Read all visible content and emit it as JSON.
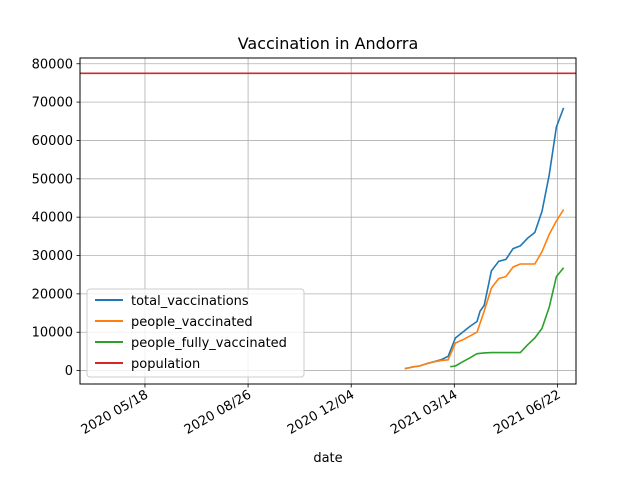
{
  "chart_data": {
    "type": "line",
    "title": "Vaccination in Andorra",
    "xlabel": "date",
    "ylabel": "",
    "grid": true,
    "legend_position": "lower-left",
    "xlim": [
      "2020-03-16",
      "2021-07-10"
    ],
    "ylim": [
      -3500,
      81500
    ],
    "x_ticks": [
      {
        "date": "2020-05-18",
        "label": "2020 05/18"
      },
      {
        "date": "2020-08-26",
        "label": "2020 08/26"
      },
      {
        "date": "2020-12-04",
        "label": "2020 12/04"
      },
      {
        "date": "2021-03-14",
        "label": "2021 03/14"
      },
      {
        "date": "2021-06-22",
        "label": "2021 06/22"
      }
    ],
    "y_ticks": [
      0,
      10000,
      20000,
      30000,
      40000,
      50000,
      60000,
      70000,
      80000
    ],
    "series": [
      {
        "name": "total_vaccinations",
        "color": "#1f77b4",
        "x": [
          "2021-01-25",
          "2021-02-01",
          "2021-02-08",
          "2021-02-15",
          "2021-02-22",
          "2021-03-01",
          "2021-03-08",
          "2021-03-15",
          "2021-03-22",
          "2021-03-29",
          "2021-04-05",
          "2021-04-08",
          "2021-04-12",
          "2021-04-19",
          "2021-04-26",
          "2021-05-03",
          "2021-05-10",
          "2021-05-17",
          "2021-05-24",
          "2021-05-31",
          "2021-06-07",
          "2021-06-14",
          "2021-06-21",
          "2021-06-28"
        ],
        "y": [
          500,
          900,
          1200,
          1800,
          2300,
          2800,
          3700,
          8500,
          10000,
          11500,
          12800,
          15500,
          17000,
          26000,
          28500,
          29000,
          31800,
          32500,
          34500,
          36000,
          41500,
          51000,
          63500,
          68500
        ]
      },
      {
        "name": "people_vaccinated",
        "color": "#ff7f0e",
        "x": [
          "2021-01-25",
          "2021-02-01",
          "2021-02-08",
          "2021-02-15",
          "2021-02-22",
          "2021-03-01",
          "2021-03-08",
          "2021-03-15",
          "2021-03-22",
          "2021-03-29",
          "2021-04-05",
          "2021-04-12",
          "2021-04-19",
          "2021-04-26",
          "2021-05-03",
          "2021-05-10",
          "2021-05-17",
          "2021-05-24",
          "2021-05-31",
          "2021-06-07",
          "2021-06-14",
          "2021-06-21",
          "2021-06-28"
        ],
        "y": [
          500,
          900,
          1200,
          1800,
          2300,
          2600,
          2800,
          7200,
          8000,
          9000,
          10000,
          15500,
          21500,
          24000,
          24500,
          27000,
          27800,
          27800,
          27800,
          31000,
          35500,
          39000,
          42000
        ]
      },
      {
        "name": "people_fully_vaccinated",
        "color": "#2ca02c",
        "x": [
          "2021-03-10",
          "2021-03-15",
          "2021-03-22",
          "2021-03-29",
          "2021-04-05",
          "2021-04-12",
          "2021-04-19",
          "2021-04-26",
          "2021-05-03",
          "2021-05-10",
          "2021-05-17",
          "2021-05-24",
          "2021-05-31",
          "2021-06-07",
          "2021-06-14",
          "2021-06-21",
          "2021-06-28"
        ],
        "y": [
          1000,
          1200,
          2300,
          3300,
          4400,
          4600,
          4700,
          4700,
          4700,
          4700,
          4700,
          6700,
          8500,
          11000,
          16500,
          24500,
          26800
        ]
      },
      {
        "name": "population",
        "color": "#d62728",
        "x": [
          "2020-03-16",
          "2021-07-10"
        ],
        "y": [
          77500,
          77500
        ]
      }
    ]
  }
}
